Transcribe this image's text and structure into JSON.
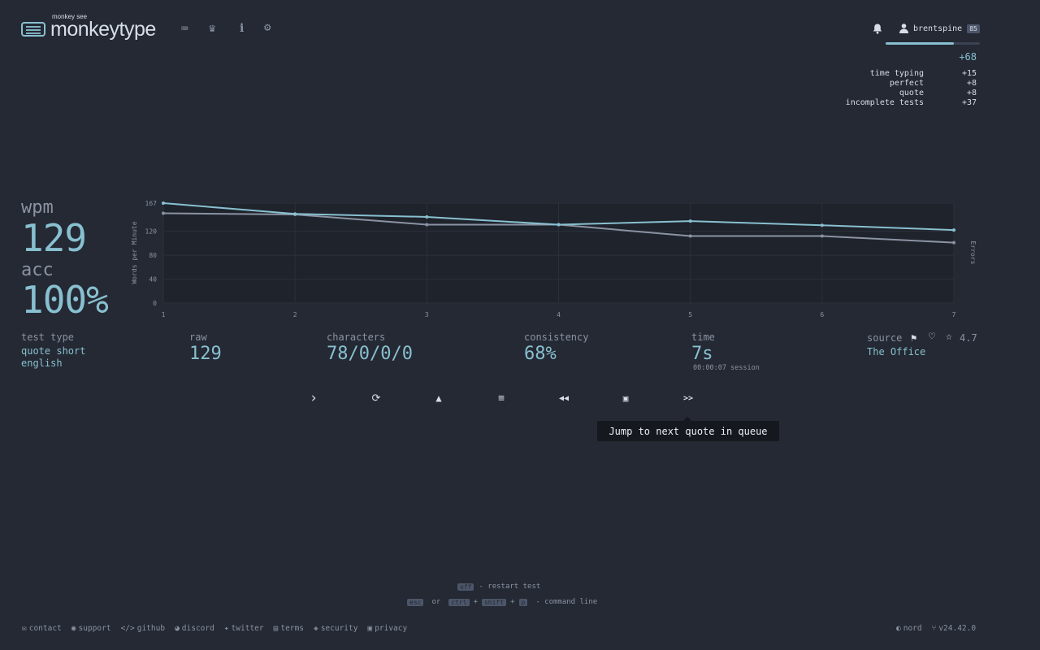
{
  "header": {
    "logo_sub": "monkey see",
    "logo_main": "monkeytype",
    "nav": [
      {
        "name": "keyboard-icon",
        "glyph": "⌨"
      },
      {
        "name": "crown-icon",
        "glyph": "♛"
      },
      {
        "name": "info-icon",
        "glyph": "i"
      },
      {
        "name": "gear-icon",
        "glyph": "⚙"
      }
    ]
  },
  "account": {
    "username": "brentspine",
    "level": "85",
    "xp_total": "+68",
    "xp_breakdown": [
      {
        "label": "time typing",
        "value": "+15"
      },
      {
        "label": "perfect",
        "value": "+8"
      },
      {
        "label": "quote",
        "value": "+8"
      },
      {
        "label": "incomplete tests",
        "value": "+37"
      }
    ]
  },
  "result": {
    "wpm_label": "wpm",
    "wpm": "129",
    "acc_label": "acc",
    "acc": "100%",
    "test_type_label": "test type",
    "test_type_1": "quote short",
    "test_type_2": "english",
    "raw_label": "raw",
    "raw": "129",
    "characters_label": "characters",
    "characters": "78/0/0/0",
    "consistency_label": "consistency",
    "consistency": "68%",
    "time_label": "time",
    "time": "7s",
    "session": "00:00:07 session",
    "source_label": "source",
    "source": "The Office",
    "rating": "4.7"
  },
  "chart_data": {
    "type": "line",
    "x": [
      1,
      2,
      3,
      4,
      5,
      6,
      7
    ],
    "ylabel": "Words per Minute",
    "y2label": "Errors",
    "yticks": [
      "167",
      "120",
      "80",
      "40",
      "0"
    ],
    "ylim": [
      0,
      167
    ],
    "series": [
      {
        "values": [
          167,
          149,
          144,
          131,
          137,
          130,
          122
        ],
        "color": "#88c0d0"
      },
      {
        "values": [
          150,
          148,
          131,
          131,
          112,
          112,
          101
        ],
        "color": "#8b93a3"
      }
    ]
  },
  "actions": {
    "tooltip": "Jump to next quote in queue",
    "buttons": [
      {
        "name": "next-test-button",
        "glyph": "›"
      },
      {
        "name": "restart-button",
        "glyph": "⟳"
      },
      {
        "name": "report-button",
        "glyph": "▲"
      },
      {
        "name": "words-history-button",
        "glyph": "≡"
      },
      {
        "name": "replay-button",
        "glyph": "⏪"
      },
      {
        "name": "screenshot-button",
        "glyph": "▣"
      },
      {
        "name": "next-quote-button",
        "glyph": ">>"
      }
    ]
  },
  "hints": {
    "restart_key": "off",
    "restart_text": "- restart test",
    "esc": "esc",
    "or": "or",
    "ctrl": "ctrl",
    "plus1": "+",
    "shift": "shift",
    "plus2": "+",
    "p": "p",
    "command_text": "- command line"
  },
  "footer": {
    "links": [
      "contact",
      "support",
      "github",
      "discord",
      "twitter",
      "terms",
      "security",
      "privacy"
    ],
    "theme": "nord",
    "version": "v24.42.0"
  }
}
